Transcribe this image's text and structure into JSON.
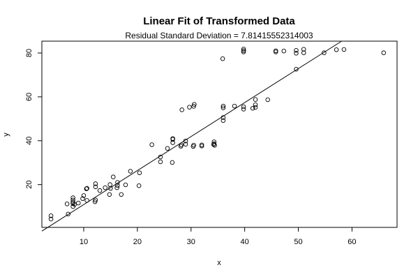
{
  "chart_data": {
    "type": "scatter",
    "title": "Linear Fit of Transformed Data",
    "subtitle": "Residual Standard Deviation =  7.81415552314003",
    "xlabel": "x",
    "ylabel": "y",
    "xlim": [
      2.2,
      68.4
    ],
    "ylim": [
      0.5,
      85.4
    ],
    "xticks": [
      10,
      20,
      30,
      40,
      50,
      60
    ],
    "yticks": [
      20,
      40,
      60,
      80
    ],
    "grid": false,
    "fit_line": {
      "intercept": -4.6,
      "slope": 1.55
    },
    "points": [
      [
        3.9,
        5.8
      ],
      [
        3.9,
        4.3
      ],
      [
        6.9,
        11.2
      ],
      [
        7.1,
        6.6
      ],
      [
        8.0,
        11.3
      ],
      [
        8.0,
        12.0
      ],
      [
        8.0,
        13.0
      ],
      [
        8.0,
        14.0
      ],
      [
        8.0,
        10.0
      ],
      [
        8.3,
        11.0
      ],
      [
        9.0,
        11.6
      ],
      [
        9.8,
        13.6
      ],
      [
        10.0,
        15.0
      ],
      [
        10.5,
        18.1
      ],
      [
        10.6,
        18.3
      ],
      [
        10.6,
        12.8
      ],
      [
        12.1,
        12.2
      ],
      [
        12.2,
        13.0
      ],
      [
        12.2,
        19.0
      ],
      [
        12.2,
        20.4
      ],
      [
        13.0,
        17.3
      ],
      [
        14.0,
        18.6
      ],
      [
        14.8,
        15.5
      ],
      [
        14.9,
        20.0
      ],
      [
        15.0,
        18.3
      ],
      [
        15.5,
        23.5
      ],
      [
        16.2,
        18.6
      ],
      [
        16.3,
        19.6
      ],
      [
        16.3,
        21.0
      ],
      [
        17.0,
        15.5
      ],
      [
        17.8,
        19.9
      ],
      [
        18.7,
        26.1
      ],
      [
        20.3,
        19.5
      ],
      [
        20.4,
        25.4
      ],
      [
        22.7,
        38.2
      ],
      [
        24.3,
        30.4
      ],
      [
        24.3,
        32.6
      ],
      [
        25.6,
        36.5
      ],
      [
        26.5,
        30.1
      ],
      [
        26.6,
        39.1
      ],
      [
        26.6,
        40.6
      ],
      [
        26.6,
        41.0
      ],
      [
        28.1,
        37.5
      ],
      [
        28.2,
        38.1
      ],
      [
        28.3,
        54.1
      ],
      [
        29.0,
        38.4
      ],
      [
        29.0,
        39.9
      ],
      [
        29.7,
        55.3
      ],
      [
        30.4,
        37.4
      ],
      [
        30.5,
        38.0
      ],
      [
        30.5,
        55.7
      ],
      [
        30.6,
        56.6
      ],
      [
        32.0,
        37.6
      ],
      [
        32.0,
        38.1
      ],
      [
        34.2,
        38.3
      ],
      [
        34.3,
        38.6
      ],
      [
        34.3,
        39.5
      ],
      [
        34.4,
        37.9
      ],
      [
        35.9,
        77.4
      ],
      [
        36.0,
        49.2
      ],
      [
        36.0,
        50.6
      ],
      [
        36.0,
        55.0
      ],
      [
        36.0,
        55.8
      ],
      [
        38.1,
        55.8
      ],
      [
        39.8,
        54.4
      ],
      [
        39.8,
        55.5
      ],
      [
        39.8,
        80.5
      ],
      [
        39.8,
        81.1
      ],
      [
        39.8,
        81.8
      ],
      [
        41.5,
        54.8
      ],
      [
        42.0,
        55.2
      ],
      [
        42.0,
        56.4
      ],
      [
        42.0,
        58.8
      ],
      [
        44.3,
        58.7
      ],
      [
        45.8,
        80.5
      ],
      [
        45.8,
        81.0
      ],
      [
        47.3,
        80.9
      ],
      [
        49.6,
        72.6
      ],
      [
        49.6,
        79.9
      ],
      [
        49.6,
        81.2
      ],
      [
        51.0,
        80.1
      ],
      [
        51.0,
        81.7
      ],
      [
        54.8,
        80.1
      ],
      [
        57.1,
        81.5
      ],
      [
        58.5,
        81.6
      ],
      [
        65.9,
        80.1
      ]
    ]
  }
}
